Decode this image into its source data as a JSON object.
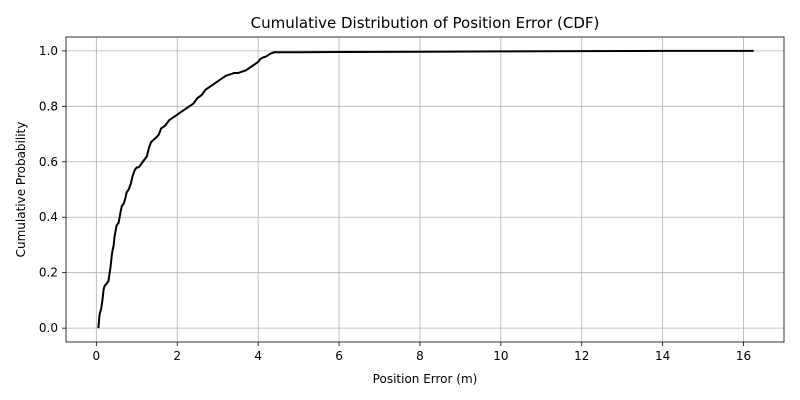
{
  "chart_data": {
    "type": "line",
    "title": "Cumulative Distribution of Position Error (CDF)",
    "xlabel": "Position Error (m)",
    "ylabel": "Cumulative Probability",
    "xlim": [
      -0.75,
      17.0
    ],
    "ylim": [
      -0.05,
      1.05
    ],
    "x_ticks": [
      0,
      2,
      4,
      6,
      8,
      10,
      12,
      14,
      16
    ],
    "y_ticks": [
      0.0,
      0.2,
      0.4,
      0.6,
      0.8,
      1.0
    ],
    "x_tick_labels": [
      "0",
      "2",
      "4",
      "6",
      "8",
      "10",
      "12",
      "14",
      "16"
    ],
    "y_tick_labels": [
      "0.0",
      "0.2",
      "0.4",
      "0.6",
      "0.8",
      "1.0"
    ],
    "grid": true,
    "line_color": "#000000",
    "series": [
      {
        "x": [
          0.05,
          0.08,
          0.12,
          0.15,
          0.18,
          0.2,
          0.22,
          0.25,
          0.3,
          0.35,
          0.38,
          0.4,
          0.43,
          0.45,
          0.5,
          0.55,
          0.6,
          0.63,
          0.68,
          0.72,
          0.75,
          0.8,
          0.85,
          0.9,
          0.95,
          1.0,
          1.05,
          1.1,
          1.15,
          1.2,
          1.25,
          1.3,
          1.35,
          1.42,
          1.5,
          1.55,
          1.6,
          1.7,
          1.8,
          1.9,
          2.0,
          2.1,
          2.2,
          2.3,
          2.4,
          2.5,
          2.6,
          2.7,
          2.8,
          2.9,
          3.0,
          3.1,
          3.2,
          3.3,
          3.4,
          3.5,
          3.6,
          3.7,
          3.8,
          3.9,
          4.0,
          4.05,
          4.1,
          4.2,
          4.3,
          4.4,
          4.5,
          4.6,
          5.0,
          6.0,
          8.0,
          10.0,
          12.0,
          14.0,
          16.25
        ],
        "y": [
          0.0,
          0.05,
          0.07,
          0.1,
          0.14,
          0.15,
          0.155,
          0.16,
          0.17,
          0.22,
          0.26,
          0.28,
          0.3,
          0.33,
          0.37,
          0.38,
          0.42,
          0.44,
          0.45,
          0.47,
          0.49,
          0.5,
          0.52,
          0.55,
          0.57,
          0.58,
          0.58,
          0.59,
          0.6,
          0.61,
          0.62,
          0.65,
          0.67,
          0.68,
          0.69,
          0.7,
          0.72,
          0.73,
          0.75,
          0.76,
          0.77,
          0.78,
          0.79,
          0.8,
          0.81,
          0.83,
          0.84,
          0.86,
          0.87,
          0.88,
          0.89,
          0.9,
          0.91,
          0.915,
          0.92,
          0.92,
          0.925,
          0.93,
          0.94,
          0.95,
          0.96,
          0.97,
          0.975,
          0.98,
          0.99,
          0.995,
          0.995,
          0.995,
          0.995,
          0.996,
          0.997,
          0.998,
          0.999,
          1.0,
          1.0
        ]
      }
    ]
  }
}
